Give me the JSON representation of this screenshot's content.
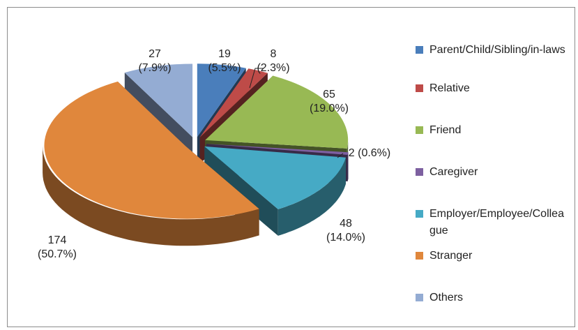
{
  "chart_data": {
    "type": "pie",
    "three_d": true,
    "exploded": true,
    "categories": [
      "Parent/Child/Sibling/in-laws",
      "Relative",
      "Friend",
      "Caregiver",
      "Employer/Employee/Colleague",
      "Stranger",
      "Others"
    ],
    "values": [
      19,
      8,
      65,
      2,
      48,
      174,
      27
    ],
    "value_labels": [
      "19\n(5.5%)",
      "8\n(2.3%)",
      "65\n(19.0%)",
      "2 (0.6%)",
      "48\n(14.0%)",
      "174\n(50.7%)",
      "27\n(7.9%)"
    ],
    "colors": [
      "#4a7ebb",
      "#be4b48",
      "#98b954",
      "#7d60a0",
      "#46aac5",
      "#e0873c",
      "#94acd3"
    ],
    "legend": "right"
  }
}
